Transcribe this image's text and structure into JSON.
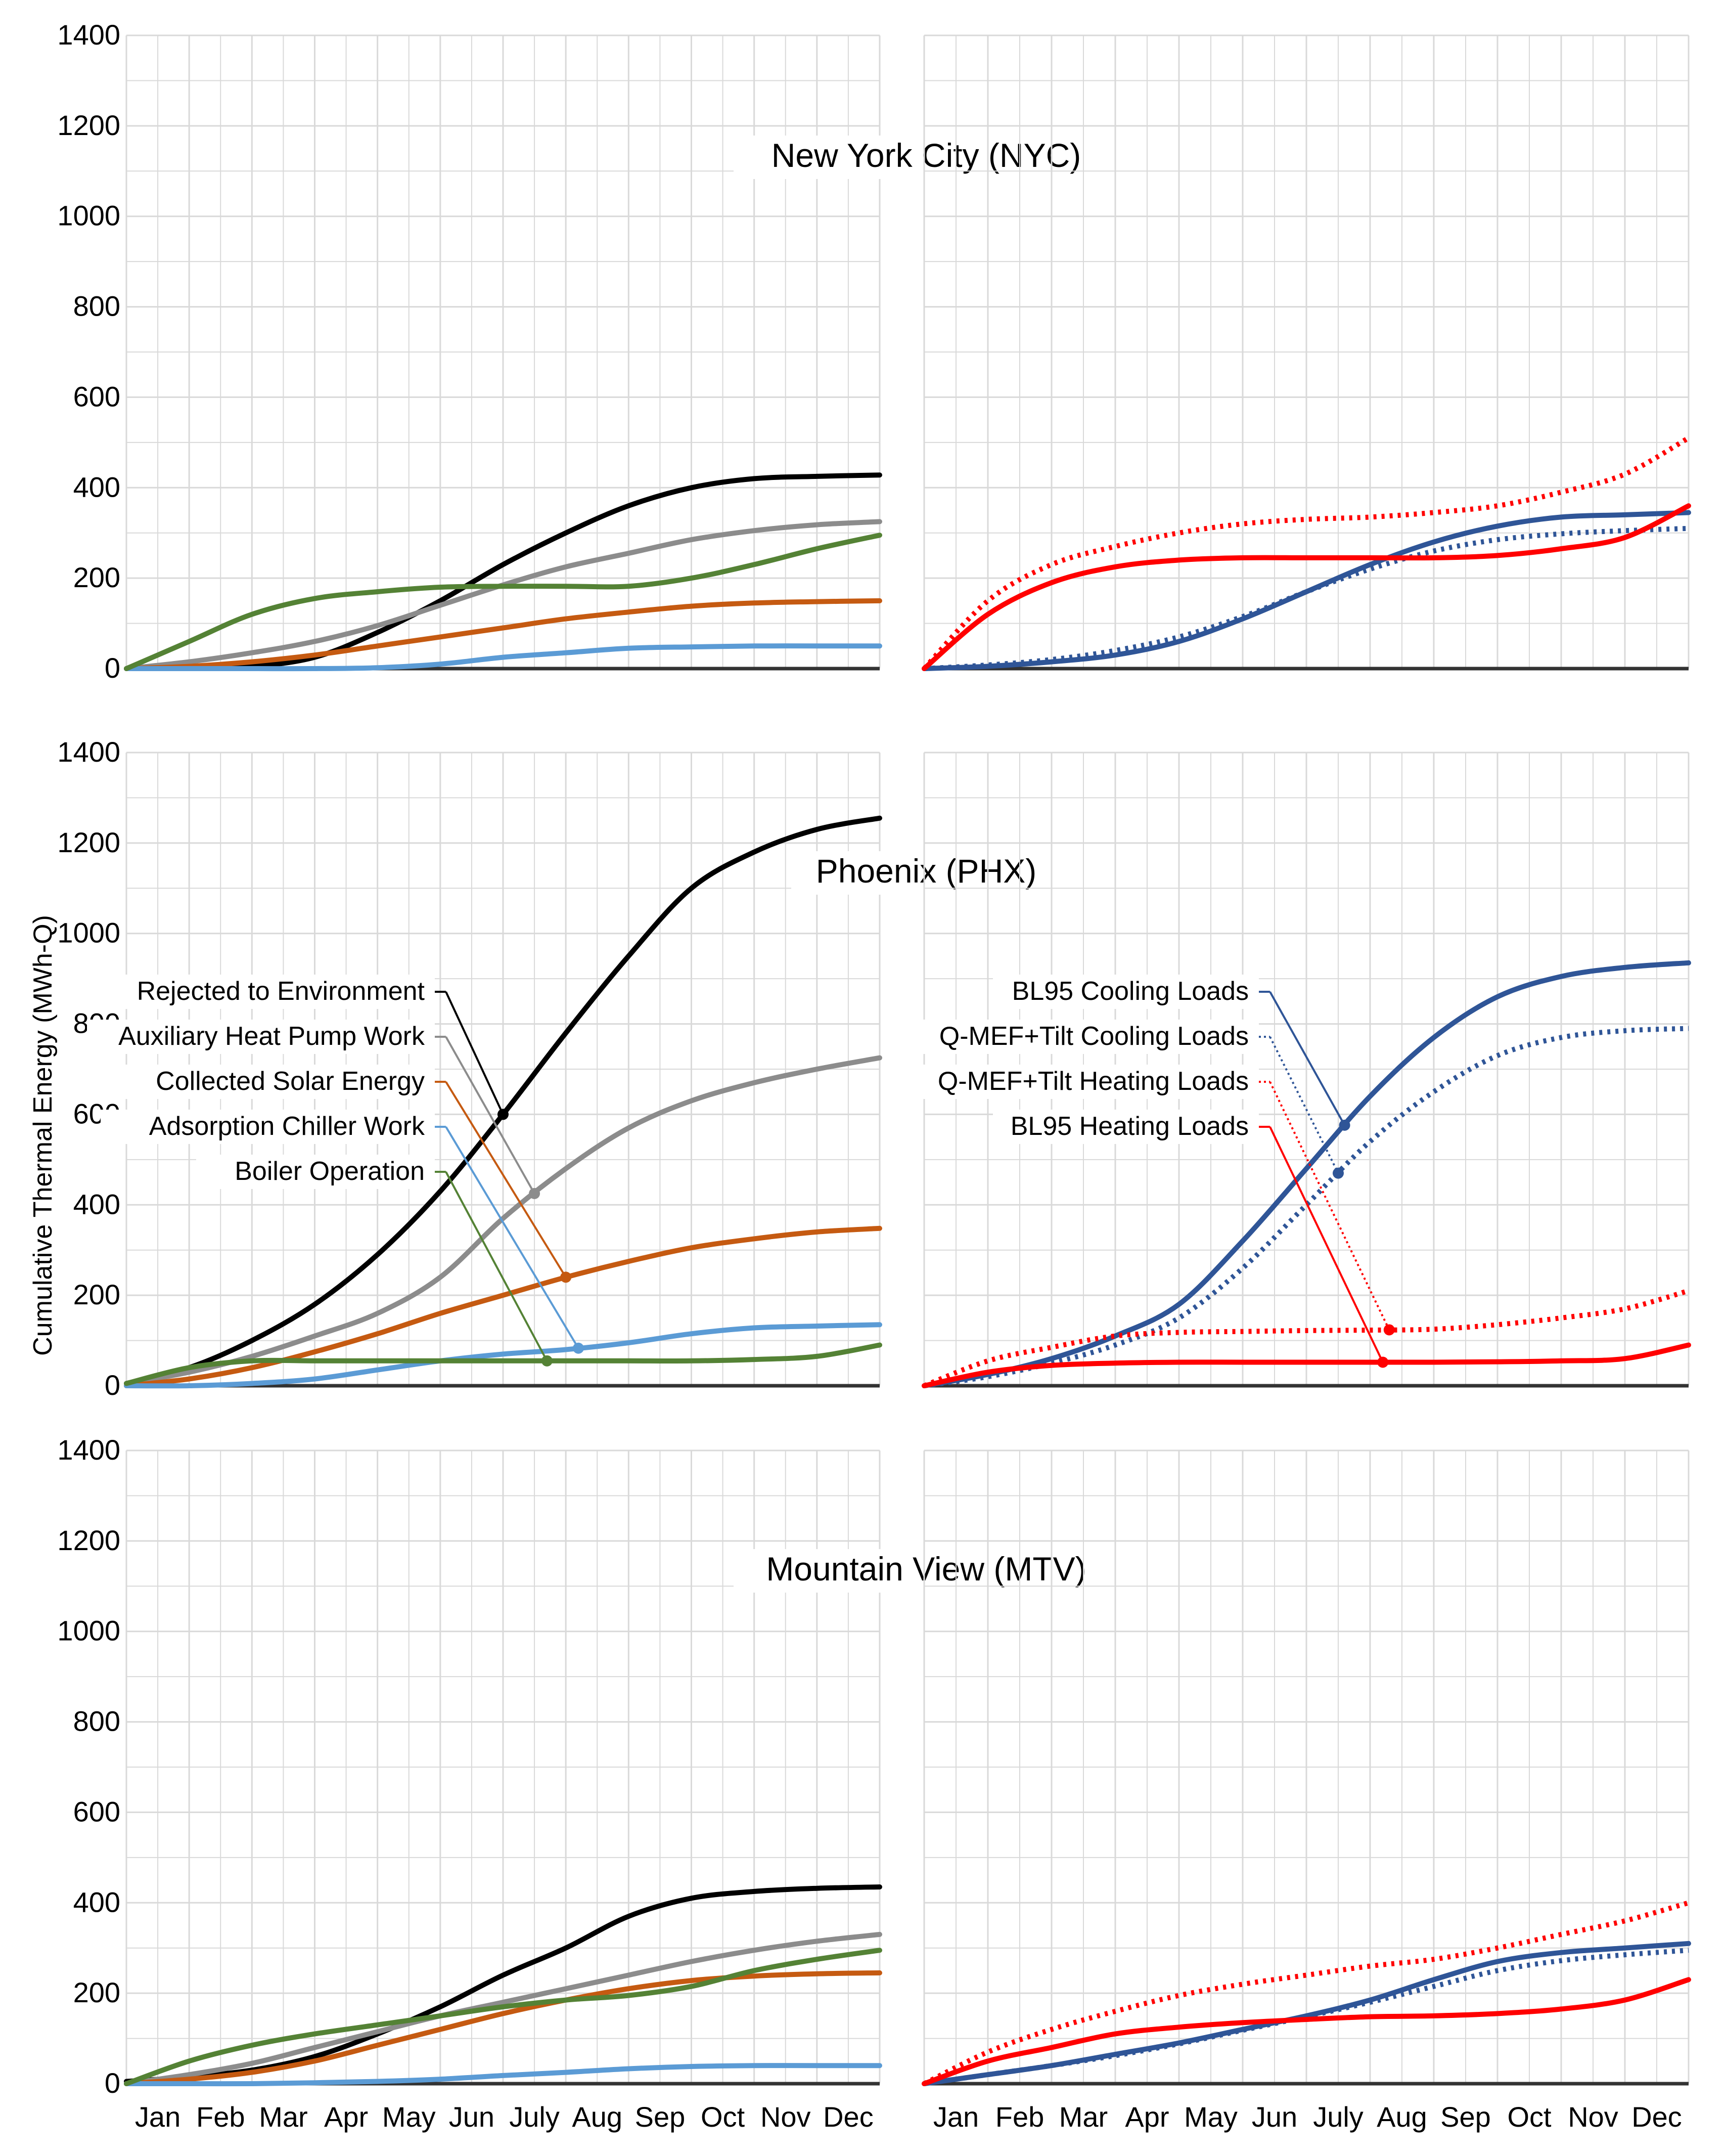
{
  "figure": {
    "ylabel": "Cumulative Thermal Energy (MWh-Q)",
    "months": [
      "Jan",
      "Feb",
      "Mar",
      "Apr",
      "May",
      "Jun",
      "July",
      "Aug",
      "Sep",
      "Oct",
      "Nov",
      "Dec"
    ],
    "y_ticks": [
      0,
      200,
      400,
      600,
      800,
      1000,
      1200,
      1400
    ]
  },
  "colors": {
    "rejected": "#000000",
    "aux_hp": "#8c8c8c",
    "solar": "#c55a11",
    "adsorption": "#5b9bd5",
    "boiler": "#548235",
    "cooling": "#2f5597",
    "heating": "#ff0000",
    "grid": "#d9d9d9",
    "axis": "#404040"
  },
  "legends": {
    "left": [
      "Rejected to Environment",
      "Auxiliary Heat Pump Work",
      "Collected Solar Energy",
      "Adsorption Chiller Work",
      "Boiler Operation"
    ],
    "right": [
      "BL95 Cooling Loads",
      "Q-MEF+Tilt Cooling Loads",
      "Q-MEF+Tilt Heating Loads",
      "BL95 Heating Loads"
    ]
  },
  "chart_data": [
    {
      "type": "line",
      "title": "New York City (NYC)",
      "panel": "left",
      "x": [
        0,
        1,
        2,
        3,
        4,
        5,
        6,
        7,
        8,
        9,
        10,
        11,
        12
      ],
      "x_tick_labels": [
        "Jan",
        "Feb",
        "Mar",
        "Apr",
        "May",
        "Jun",
        "July",
        "Aug",
        "Sep",
        "Oct",
        "Nov",
        "Dec"
      ],
      "ylim": [
        0,
        1400
      ],
      "series": [
        {
          "name": "Rejected to Environment",
          "values": [
            0,
            2,
            5,
            25,
            80,
            150,
            230,
            300,
            360,
            400,
            420,
            425,
            428
          ]
        },
        {
          "name": "Auxiliary Heat Pump Work",
          "values": [
            0,
            15,
            35,
            60,
            95,
            140,
            185,
            225,
            255,
            285,
            305,
            318,
            325
          ]
        },
        {
          "name": "Collected Solar Energy",
          "values": [
            0,
            5,
            15,
            30,
            50,
            70,
            90,
            110,
            125,
            138,
            145,
            148,
            150
          ]
        },
        {
          "name": "Adsorption Chiller Work",
          "values": [
            0,
            0,
            0,
            0,
            2,
            10,
            25,
            35,
            45,
            48,
            50,
            50,
            50
          ]
        },
        {
          "name": "Boiler Operation",
          "values": [
            0,
            60,
            120,
            155,
            170,
            180,
            182,
            182,
            182,
            200,
            230,
            265,
            295
          ]
        }
      ]
    },
    {
      "type": "line",
      "title": "",
      "panel": "right",
      "x": [
        0,
        1,
        2,
        3,
        4,
        5,
        6,
        7,
        8,
        9,
        10,
        11,
        12
      ],
      "x_tick_labels": [
        "Jan",
        "Feb",
        "Mar",
        "Apr",
        "May",
        "Jun",
        "July",
        "Aug",
        "Sep",
        "Oct",
        "Nov",
        "Dec"
      ],
      "ylim": [
        0,
        1400
      ],
      "series": [
        {
          "name": "BL95 Cooling Loads",
          "values": [
            0,
            5,
            15,
            30,
            60,
            110,
            170,
            230,
            280,
            315,
            335,
            340,
            345
          ]
        },
        {
          "name": "Q-MEF+Tilt Cooling Loads",
          "values": [
            0,
            8,
            20,
            40,
            70,
            115,
            170,
            220,
            260,
            285,
            298,
            305,
            310
          ]
        },
        {
          "name": "Q-MEF+Tilt Heating Loads",
          "values": [
            0,
            150,
            230,
            270,
            300,
            320,
            330,
            335,
            345,
            360,
            390,
            430,
            510
          ]
        },
        {
          "name": "BL95 Heating Loads",
          "values": [
            0,
            120,
            190,
            225,
            240,
            245,
            245,
            245,
            245,
            250,
            265,
            290,
            360
          ]
        }
      ]
    },
    {
      "type": "line",
      "title": "Phoenix (PHX)",
      "panel": "left",
      "x": [
        0,
        1,
        2,
        3,
        4,
        5,
        6,
        7,
        8,
        9,
        10,
        11,
        12
      ],
      "x_tick_labels": [
        "Jan",
        "Feb",
        "Mar",
        "Apr",
        "May",
        "Jun",
        "July",
        "Aug",
        "Sep",
        "Oct",
        "Nov",
        "Dec"
      ],
      "ylim": [
        0,
        1400
      ],
      "series": [
        {
          "name": "Rejected to Environment",
          "values": [
            5,
            40,
            100,
            180,
            290,
            430,
            600,
            780,
            950,
            1100,
            1180,
            1230,
            1255
          ]
        },
        {
          "name": "Auxiliary Heat Pump Work",
          "values": [
            5,
            30,
            65,
            110,
            160,
            240,
            370,
            480,
            570,
            630,
            670,
            700,
            725
          ]
        },
        {
          "name": "Collected Solar Energy",
          "values": [
            0,
            15,
            40,
            75,
            115,
            160,
            200,
            240,
            275,
            305,
            325,
            340,
            348
          ]
        },
        {
          "name": "Adsorption Chiller Work",
          "values": [
            0,
            0,
            5,
            15,
            35,
            55,
            70,
            80,
            95,
            115,
            128,
            132,
            135
          ]
        },
        {
          "name": "Boiler Operation",
          "values": [
            5,
            40,
            55,
            55,
            55,
            55,
            55,
            55,
            55,
            55,
            58,
            65,
            90
          ]
        }
      ]
    },
    {
      "type": "line",
      "title": "",
      "panel": "right",
      "x": [
        0,
        1,
        2,
        3,
        4,
        5,
        6,
        7,
        8,
        9,
        10,
        11,
        12
      ],
      "x_tick_labels": [
        "Jan",
        "Feb",
        "Mar",
        "Apr",
        "May",
        "Jun",
        "July",
        "Aug",
        "Sep",
        "Oct",
        "Nov",
        "Dec"
      ],
      "ylim": [
        0,
        1400
      ],
      "series": [
        {
          "name": "BL95 Cooling Loads",
          "values": [
            0,
            25,
            60,
            110,
            180,
            320,
            480,
            640,
            770,
            860,
            905,
            925,
            935
          ]
        },
        {
          "name": "Q-MEF+Tilt Cooling Loads",
          "values": [
            0,
            20,
            50,
            90,
            150,
            260,
            400,
            540,
            650,
            730,
            770,
            785,
            790
          ]
        },
        {
          "name": "Q-MEF+Tilt Heating Loads",
          "values": [
            0,
            55,
            85,
            110,
            118,
            120,
            122,
            123,
            125,
            135,
            150,
            170,
            210
          ]
        },
        {
          "name": "BL95 Heating Loads",
          "values": [
            0,
            30,
            45,
            50,
            52,
            52,
            52,
            52,
            52,
            53,
            55,
            60,
            90
          ]
        }
      ]
    },
    {
      "type": "line",
      "title": "Mountain View (MTV)",
      "panel": "left",
      "x": [
        0,
        1,
        2,
        3,
        4,
        5,
        6,
        7,
        8,
        9,
        10,
        11,
        12
      ],
      "x_tick_labels": [
        "Jan",
        "Feb",
        "Mar",
        "Apr",
        "May",
        "Jun",
        "July",
        "Aug",
        "Sep",
        "Oct",
        "Nov",
        "Dec"
      ],
      "ylim": [
        0,
        1400
      ],
      "series": [
        {
          "name": "Rejected to Environment",
          "values": [
            5,
            15,
            30,
            60,
            110,
            170,
            240,
            300,
            370,
            410,
            425,
            432,
            435
          ]
        },
        {
          "name": "Auxiliary Heat Pump Work",
          "values": [
            0,
            20,
            45,
            80,
            115,
            150,
            180,
            210,
            240,
            270,
            295,
            315,
            330
          ]
        },
        {
          "name": "Collected Solar Energy",
          "values": [
            0,
            10,
            25,
            50,
            85,
            120,
            155,
            185,
            210,
            228,
            238,
            243,
            245
          ]
        },
        {
          "name": "Adsorption Chiller Work",
          "values": [
            0,
            0,
            0,
            2,
            5,
            10,
            18,
            25,
            33,
            38,
            40,
            40,
            40
          ]
        },
        {
          "name": "Boiler Operation",
          "values": [
            0,
            50,
            85,
            110,
            130,
            150,
            170,
            185,
            195,
            215,
            250,
            275,
            295
          ]
        }
      ]
    },
    {
      "type": "line",
      "title": "",
      "panel": "right",
      "x": [
        0,
        1,
        2,
        3,
        4,
        5,
        6,
        7,
        8,
        9,
        10,
        11,
        12
      ],
      "x_tick_labels": [
        "Jan",
        "Feb",
        "Mar",
        "Apr",
        "May",
        "Jun",
        "July",
        "Aug",
        "Sep",
        "Oct",
        "Nov",
        "Dec"
      ],
      "ylim": [
        0,
        1400
      ],
      "series": [
        {
          "name": "BL95 Cooling Loads",
          "values": [
            0,
            20,
            40,
            65,
            90,
            120,
            150,
            185,
            230,
            270,
            290,
            300,
            310
          ]
        },
        {
          "name": "Q-MEF+Tilt Cooling Loads",
          "values": [
            0,
            20,
            40,
            62,
            88,
            118,
            148,
            180,
            215,
            250,
            272,
            285,
            295
          ]
        },
        {
          "name": "Q-MEF+Tilt Heating Loads",
          "values": [
            0,
            70,
            120,
            160,
            195,
            220,
            240,
            260,
            275,
            300,
            330,
            360,
            400
          ]
        },
        {
          "name": "BL95 Heating Loads",
          "values": [
            0,
            50,
            80,
            110,
            125,
            135,
            142,
            148,
            150,
            155,
            165,
            185,
            230
          ]
        }
      ]
    }
  ]
}
